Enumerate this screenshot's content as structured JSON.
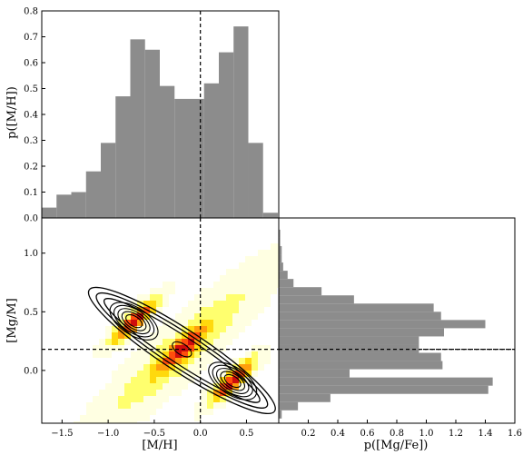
{
  "chart_data": [
    {
      "id": "mh-histogram",
      "type": "bar",
      "xlabel": "",
      "ylabel": "p([M/H])",
      "xlim": [
        -1.72,
        0.85
      ],
      "ylim": [
        0,
        0.8
      ],
      "yticks": [
        "0.0",
        "0.1",
        "0.2",
        "0.3",
        "0.4",
        "0.5",
        "0.6",
        "0.7",
        "0.8"
      ],
      "bar_color": "#8c8c8c",
      "bin_edges": [
        -1.72,
        -1.56,
        -1.4,
        -1.24,
        -1.08,
        -0.92,
        -0.76,
        -0.6,
        -0.44,
        -0.28,
        -0.12,
        0.04,
        0.2,
        0.36,
        0.52,
        0.68,
        0.84
      ],
      "values": [
        0.04,
        0.09,
        0.1,
        0.18,
        0.29,
        0.47,
        0.69,
        0.65,
        0.51,
        0.46,
        0.46,
        0.52,
        0.64,
        0.74,
        0.29,
        0.02
      ],
      "reference_line": {
        "x": 0.0,
        "style": "dashed"
      }
    },
    {
      "id": "joint-density",
      "type": "heatmap",
      "xlabel": "[M/H]",
      "ylabel": "[Mg/M]",
      "xlim": [
        -1.72,
        0.85
      ],
      "ylim": [
        -0.45,
        1.3
      ],
      "xticks": [
        "−1.5",
        "−1.0",
        "−0.5",
        "0.0",
        "0.5"
      ],
      "yticks": [
        "0.0",
        "0.5",
        "1.0"
      ],
      "colormap": [
        "#ffffe0",
        "#ffff66",
        "#ffd700",
        "#ff9900",
        "#ff4500",
        "#cc0000"
      ],
      "density_peaks": [
        {
          "x": -0.72,
          "y": 0.42,
          "peak": 1.0
        },
        {
          "x": -0.2,
          "y": 0.18,
          "peak": 0.7
        },
        {
          "x": 0.35,
          "y": -0.09,
          "peak": 1.0
        }
      ],
      "contour_levels": 8,
      "reference_lines": [
        {
          "x": 0.0,
          "style": "dashed"
        },
        {
          "y": 0.18,
          "style": "dashed"
        }
      ]
    },
    {
      "id": "mgfe-histogram",
      "type": "bar",
      "orientation": "horizontal",
      "xlabel": "p([Mg/Fe])",
      "ylabel": "",
      "xlim": [
        0,
        1.6
      ],
      "xticks": [
        "0.2",
        "0.4",
        "0.6",
        "0.8",
        "1.0",
        "1.2",
        "1.4",
        "1.6"
      ],
      "bar_color": "#8c8c8c",
      "bin_edges": [
        1.2,
        1.13,
        1.06,
        0.99,
        0.92,
        0.85,
        0.78,
        0.71,
        0.64,
        0.57,
        0.5,
        0.43,
        0.36,
        0.29,
        0.22,
        0.15,
        0.08,
        0.01,
        -0.06,
        -0.13,
        -0.2,
        -0.27,
        -0.34,
        -0.41
      ],
      "values": [
        0.01,
        0.01,
        0.02,
        0.02,
        0.03,
        0.06,
        0.1,
        0.29,
        0.51,
        1.05,
        1.1,
        1.4,
        1.12,
        0.95,
        0.95,
        1.1,
        1.11,
        0.48,
        1.45,
        1.42,
        0.35,
        0.13,
        0.02
      ],
      "reference_line": {
        "y": 0.18,
        "style": "dashed"
      }
    }
  ]
}
